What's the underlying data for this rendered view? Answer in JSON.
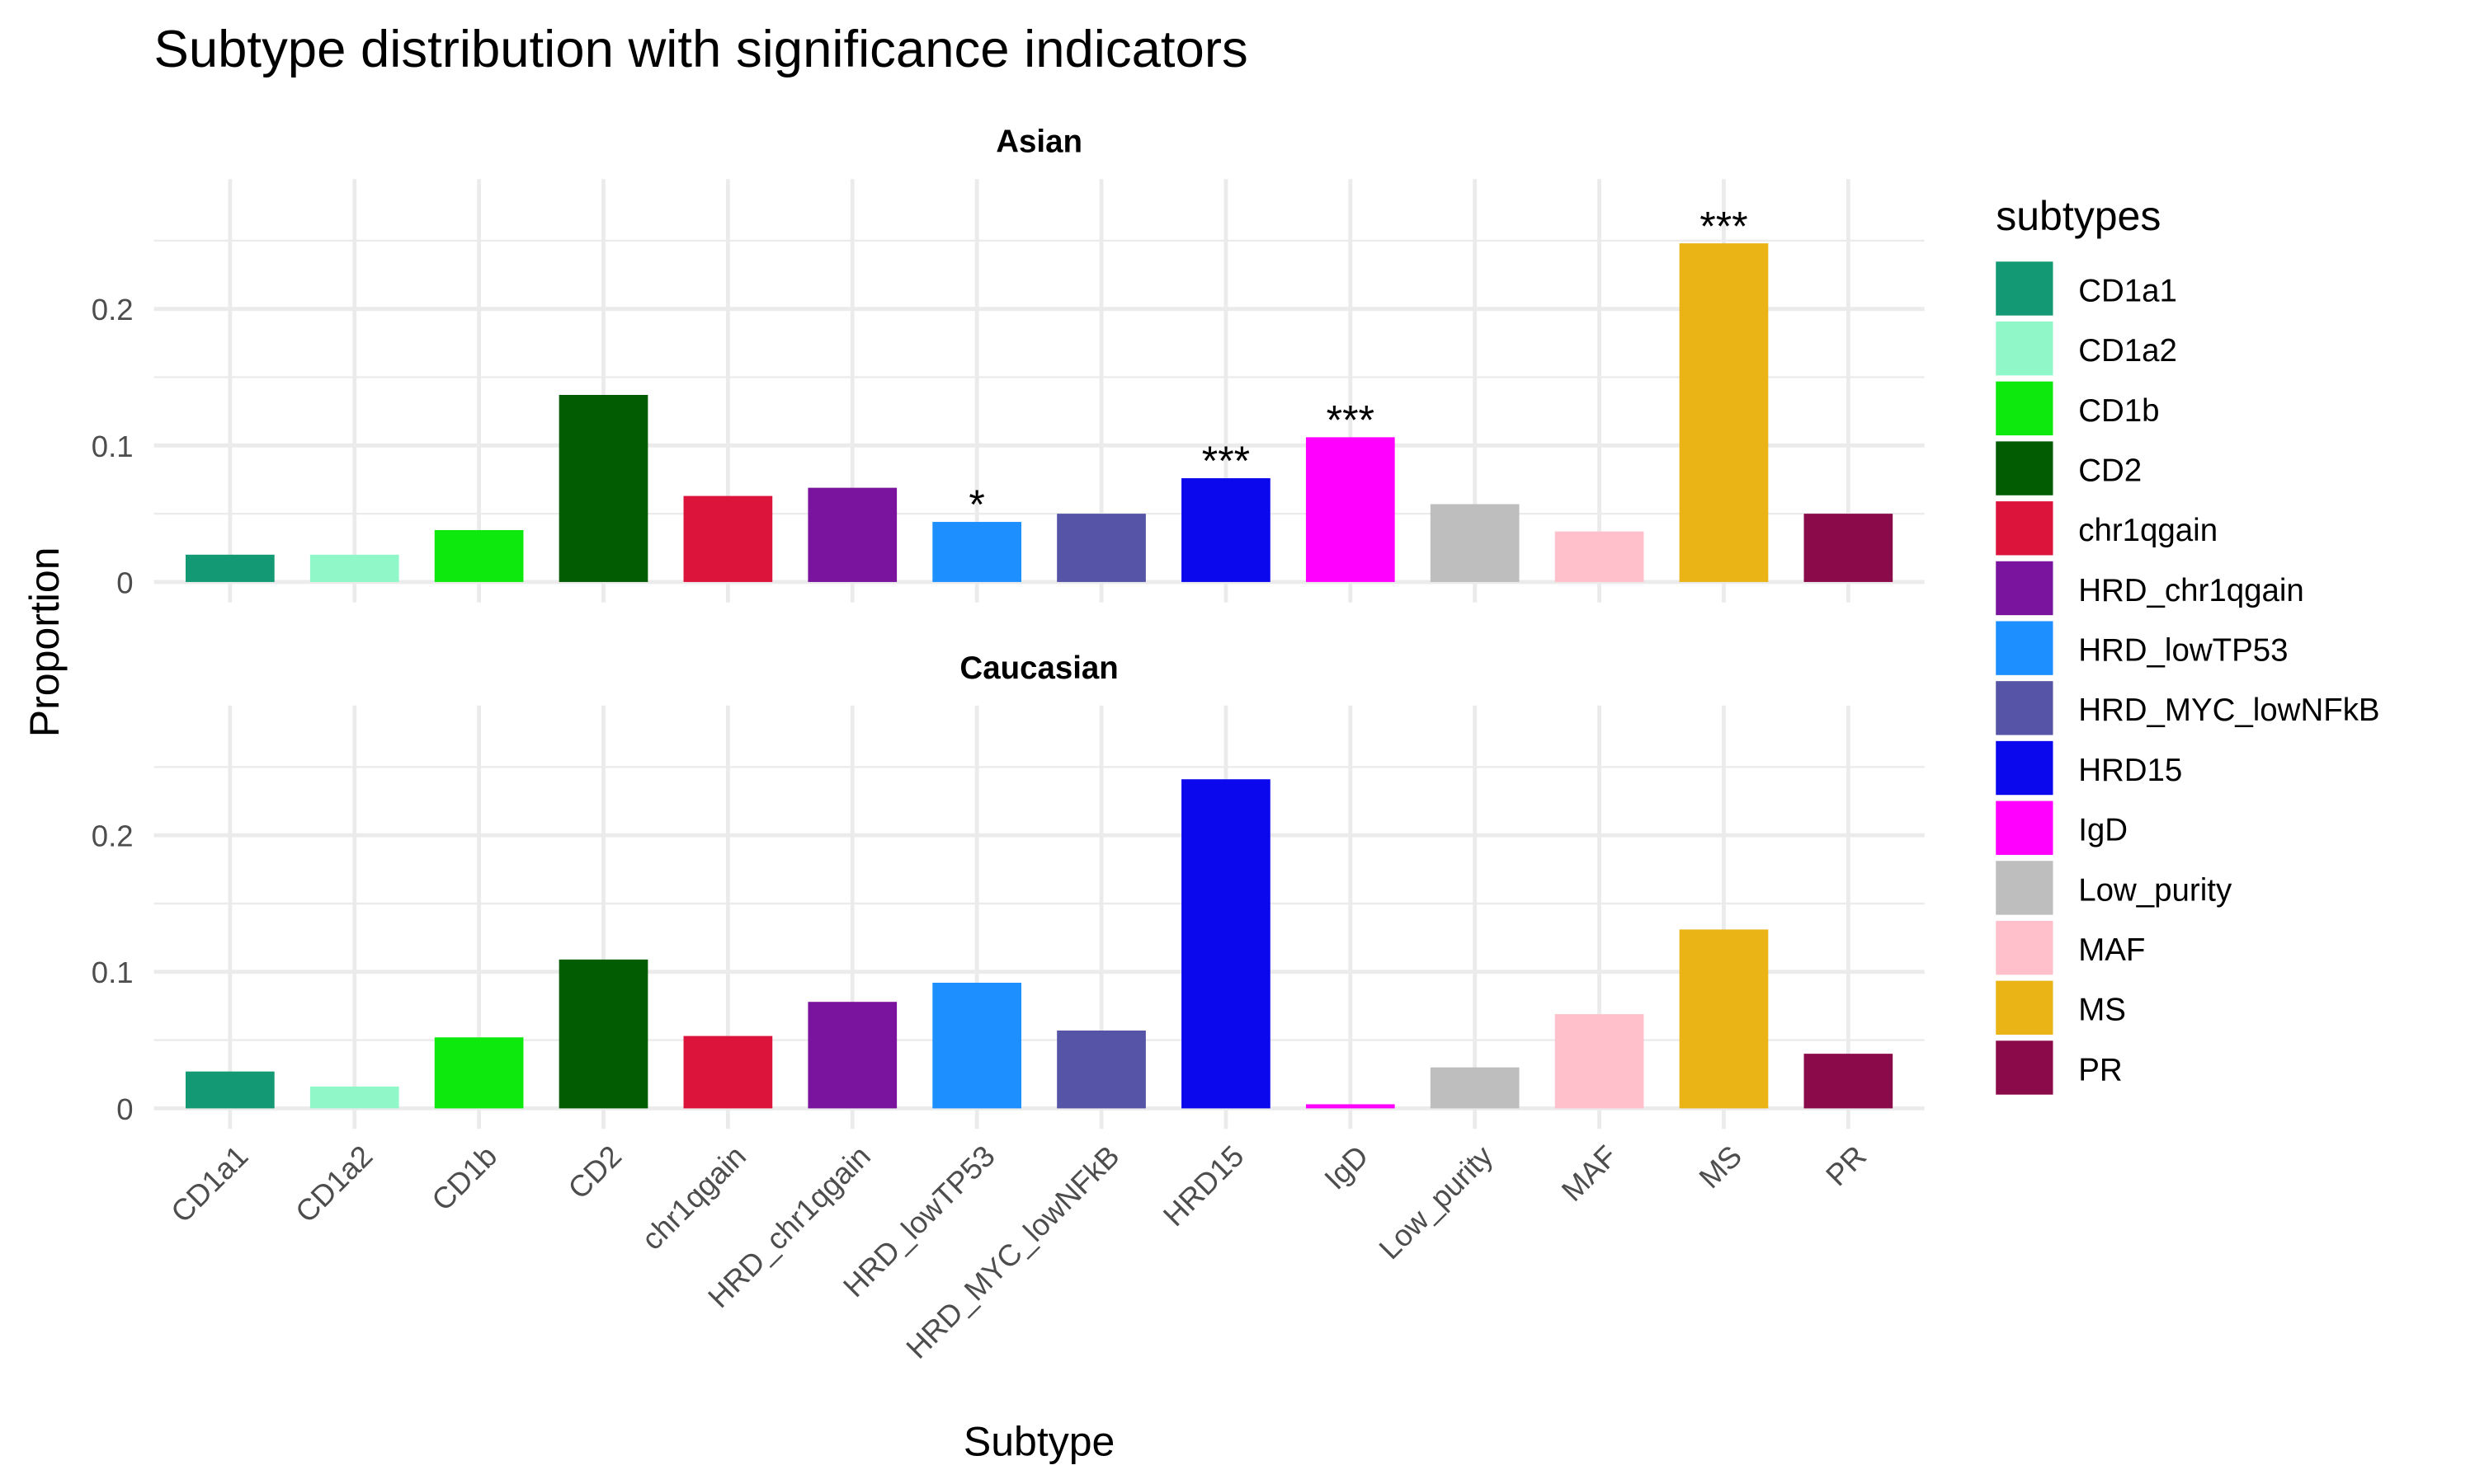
{
  "chart_data": {
    "type": "bar",
    "title": "Subtype distribution with significance indicators",
    "x_label": "Subtype",
    "y_label": "Proportion",
    "legend_title": "subtypes",
    "categories": [
      "CD1a1",
      "CD1a2",
      "CD1b",
      "CD2",
      "chr1qgain",
      "HRD_chr1qgain",
      "HRD_lowTP53",
      "HRD_MYC_lowNFkB",
      "HRD15",
      "IgD",
      "Low_purity",
      "MAF",
      "MS",
      "PR"
    ],
    "colors": [
      "#139a74",
      "#90f8c8",
      "#0de80d",
      "#025c02",
      "#dc143c",
      "#7a139e",
      "#1e8fff",
      "#5654a6",
      "#0c08ee",
      "#ff00ff",
      "#bebebe",
      "#ffc0cb",
      "#eab316",
      "#8b0a4a"
    ],
    "ylim": [
      -0.015,
      0.295
    ],
    "yticks": [
      0,
      0.1,
      0.2
    ],
    "minor_yticks": [
      0.05,
      0.15,
      0.25
    ],
    "grid": true,
    "facets": [
      {
        "title": "Asian",
        "values": [
          0.02,
          0.02,
          0.038,
          0.137,
          0.063,
          0.069,
          0.044,
          0.05,
          0.076,
          0.106,
          0.057,
          0.037,
          0.248,
          0.05
        ],
        "annotations": [
          null,
          null,
          null,
          null,
          null,
          null,
          "*",
          null,
          "***",
          "***",
          null,
          null,
          "***",
          null
        ]
      },
      {
        "title": "Caucasian",
        "values": [
          0.027,
          0.016,
          0.052,
          0.109,
          0.053,
          0.078,
          0.092,
          0.057,
          0.241,
          0.003,
          0.03,
          0.069,
          0.131,
          0.04
        ],
        "annotations": [
          null,
          null,
          null,
          null,
          null,
          null,
          null,
          null,
          null,
          null,
          null,
          null,
          null,
          null
        ]
      }
    ]
  }
}
